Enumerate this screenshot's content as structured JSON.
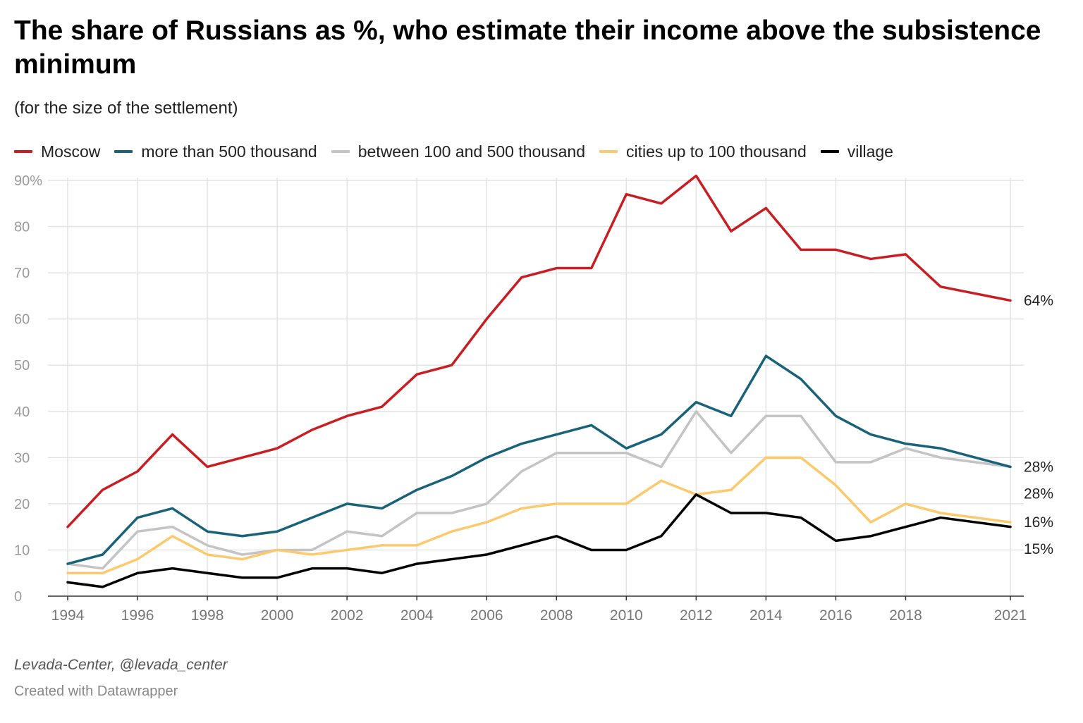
{
  "chart_data": {
    "type": "line",
    "title": "The share of Russians as %, who estimate their income above the subsistence minimum",
    "subtitle": "(for the size of the settlement)",
    "xlabel": "",
    "ylabel": "",
    "x": [
      1994,
      1995,
      1996,
      1997,
      1998,
      1999,
      2000,
      2001,
      2002,
      2003,
      2004,
      2005,
      2006,
      2007,
      2008,
      2009,
      2010,
      2011,
      2012,
      2013,
      2014,
      2015,
      2016,
      2017,
      2018,
      2019,
      2021
    ],
    "x_ticks": [
      "1994",
      "1996",
      "1998",
      "2000",
      "2002",
      "2004",
      "2006",
      "2008",
      "2010",
      "2012",
      "2014",
      "2016",
      "2018",
      "2021"
    ],
    "y_ticks": [
      "0",
      "10",
      "20",
      "30",
      "40",
      "50",
      "60",
      "70",
      "80",
      "90%"
    ],
    "ylim": [
      0,
      90
    ],
    "grid": true,
    "legend_position": "top-left",
    "series": [
      {
        "name": "Moscow",
        "color": "#c91d22",
        "end_label": "64%",
        "values": [
          15,
          23,
          27,
          35,
          28,
          30,
          32,
          36,
          39,
          41,
          48,
          50,
          60,
          69,
          71,
          71,
          87,
          85,
          91,
          79,
          84,
          75,
          75,
          73,
          74,
          67,
          64
        ]
      },
      {
        "name": "more than 500 thousand",
        "color": "#18627a",
        "end_label": "28%",
        "values": [
          7,
          9,
          17,
          19,
          14,
          13,
          14,
          17,
          20,
          19,
          23,
          26,
          30,
          33,
          35,
          37,
          32,
          35,
          42,
          39,
          52,
          47,
          39,
          35,
          33,
          32,
          28
        ]
      },
      {
        "name": "between 100 and 500 thousand",
        "color": "#c4c4c4",
        "end_label": "28%",
        "values": [
          7,
          6,
          14,
          15,
          11,
          9,
          10,
          10,
          14,
          13,
          18,
          18,
          20,
          27,
          31,
          31,
          31,
          28,
          40,
          31,
          39,
          39,
          29,
          29,
          32,
          30,
          28
        ]
      },
      {
        "name": "cities up to 100 thousand",
        "color": "#fcc96d",
        "end_label": "16%",
        "values": [
          5,
          5,
          8,
          13,
          9,
          8,
          10,
          9,
          10,
          11,
          11,
          14,
          16,
          19,
          20,
          20,
          20,
          25,
          22,
          23,
          30,
          30,
          24,
          16,
          20,
          18,
          16
        ]
      },
      {
        "name": "village",
        "color": "#000000",
        "end_label": "15%",
        "values": [
          3,
          2,
          5,
          6,
          5,
          4,
          4,
          6,
          6,
          5,
          7,
          8,
          9,
          11,
          13,
          10,
          10,
          13,
          22,
          18,
          18,
          17,
          12,
          13,
          15,
          17,
          15
        ]
      }
    ]
  },
  "source": "Levada-Center, @levada_center",
  "credit": "Created with Datawrapper"
}
